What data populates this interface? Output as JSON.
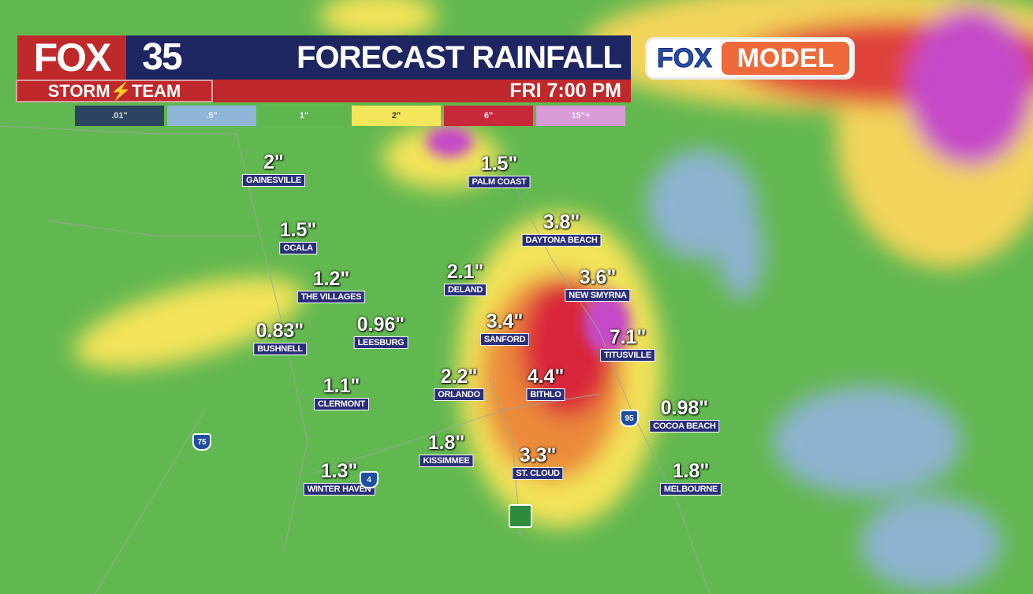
{
  "header": {
    "logo_fox": "FOX",
    "logo_number": "35",
    "storm_team": "STORM⚡TEAM",
    "title": "FORECAST RAINFALL",
    "time": "FRI 7:00 PM",
    "model_logo": {
      "left": "FOX",
      "right": "MODEL"
    }
  },
  "legend": [
    {
      "label": ".01\"",
      "color": "#2b4560"
    },
    {
      "label": ".5\"",
      "color": "#8fb6d8"
    },
    {
      "label": "1\"",
      "color": "#5fb54e"
    },
    {
      "label": "2\"",
      "color": "#f3e65a"
    },
    {
      "label": "6\"",
      "color": "#c8283a"
    },
    {
      "label": "15\"+",
      "color": "#d99ad8"
    }
  ],
  "cities": [
    {
      "name": "Gainesville",
      "value": "2\""
    },
    {
      "name": "Palm Coast",
      "value": "1.5\""
    },
    {
      "name": "Daytona Beach",
      "value": "3.8\""
    },
    {
      "name": "Ocala",
      "value": "1.5\""
    },
    {
      "name": "DeLand",
      "value": "2.1\""
    },
    {
      "name": "The Villages",
      "value": "1.2\""
    },
    {
      "name": "New Smyrna",
      "value": "3.6\""
    },
    {
      "name": "Bushnell",
      "value": "0.83\""
    },
    {
      "name": "Leesburg",
      "value": "0.96\""
    },
    {
      "name": "Sanford",
      "value": "3.4\""
    },
    {
      "name": "Titusville",
      "value": "7.1\""
    },
    {
      "name": "Orlando",
      "value": "2.2\""
    },
    {
      "name": "Bithlo",
      "value": "4.4\""
    },
    {
      "name": "Clermont",
      "value": "1.1\""
    },
    {
      "name": "Cocoa Beach",
      "value": "0.98\""
    },
    {
      "name": "Kissimmee",
      "value": "1.8\""
    },
    {
      "name": "St. Cloud",
      "value": "3.3\""
    },
    {
      "name": "Winter Haven",
      "value": "1.3\""
    },
    {
      "name": "Melbourne",
      "value": "1.8\""
    }
  ],
  "shields": [
    {
      "label": "75"
    },
    {
      "label": "4"
    },
    {
      "label": "95"
    }
  ]
}
